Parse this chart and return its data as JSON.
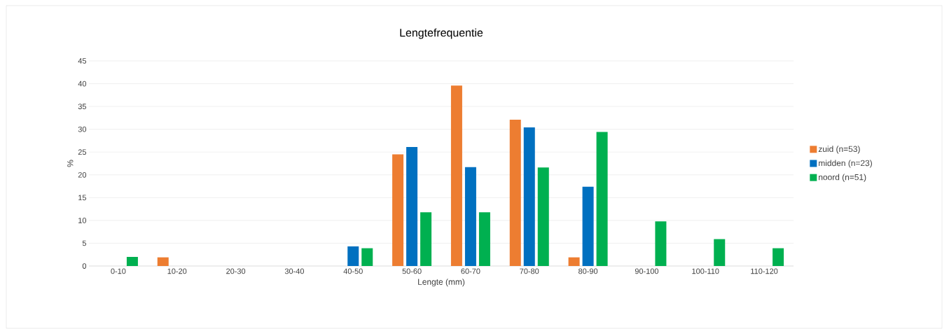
{
  "chart_data": {
    "type": "bar",
    "title": "Lengtefrequentie",
    "xlabel": "Lengte (mm)",
    "ylabel": "%",
    "categories": [
      "0-10",
      "10-20",
      "20-30",
      "30-40",
      "40-50",
      "50-60",
      "60-70",
      "70-80",
      "80-90",
      "90-100",
      "100-110",
      "110-120"
    ],
    "series": [
      {
        "name": "zuid (n=53)",
        "color": "#ed7d31",
        "values": [
          0,
          1.9,
          0,
          0,
          0,
          24.5,
          39.6,
          32.1,
          1.9,
          0,
          0,
          0
        ]
      },
      {
        "name": "midden (n=23)",
        "color": "#0070c0",
        "values": [
          0,
          0,
          0,
          0,
          4.3,
          26.1,
          21.7,
          30.4,
          17.4,
          0,
          0,
          0
        ]
      },
      {
        "name": "noord (n=51)",
        "color": "#00b050",
        "values": [
          2.0,
          0,
          0,
          0,
          3.9,
          11.8,
          11.8,
          21.6,
          29.4,
          9.8,
          5.9,
          3.9
        ]
      }
    ],
    "ylim": [
      0,
      45
    ],
    "yticks": [
      0,
      5,
      10,
      15,
      20,
      25,
      30,
      35,
      40,
      45
    ],
    "grid": "y",
    "legend": "right"
  }
}
